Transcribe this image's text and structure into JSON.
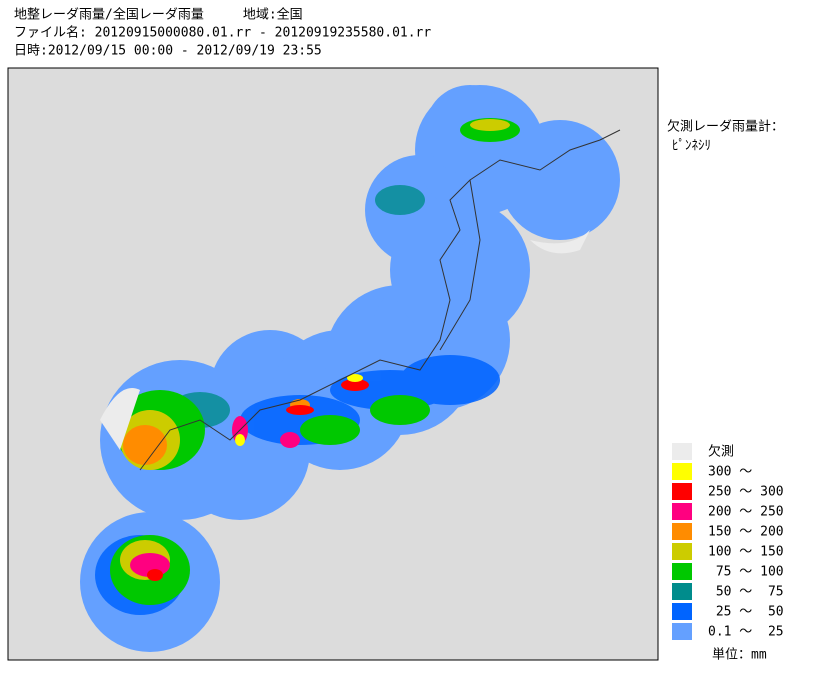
{
  "header": {
    "line1": "地整レーダ雨量/全国レーダ雨量　　　地域:全国",
    "line2": "ファイル名: 20120915000080.01.rr - 20120919235580.01.rr",
    "line3": "日時:2012/09/15 00:00 - 2012/09/19 23:55"
  },
  "missing_gauges": {
    "title": "欠測レーダ雨量計：",
    "names": "ﾋﾟﾝﾈｼﾘ"
  },
  "legend": {
    "items": [
      {
        "label": "欠測",
        "color": "#ececec"
      },
      {
        "label": "300 ～",
        "color": "#ffff00"
      },
      {
        "label": "250 ～ 300",
        "color": "#ff0000"
      },
      {
        "label": "200 ～ 250",
        "color": "#ff0080"
      },
      {
        "label": "150 ～ 200",
        "color": "#ff8c00"
      },
      {
        "label": "100 ～ 150",
        "color": "#cccc00"
      },
      {
        "label": " 75 ～ 100",
        "color": "#00c800"
      },
      {
        "label": " 50 ～  75",
        "color": "#008c8c"
      },
      {
        "label": " 25 ～  50",
        "color": "#0064ff"
      },
      {
        "label": "0.1 ～  25",
        "color": "#64a0ff"
      }
    ],
    "unit": "単位：mm"
  }
}
